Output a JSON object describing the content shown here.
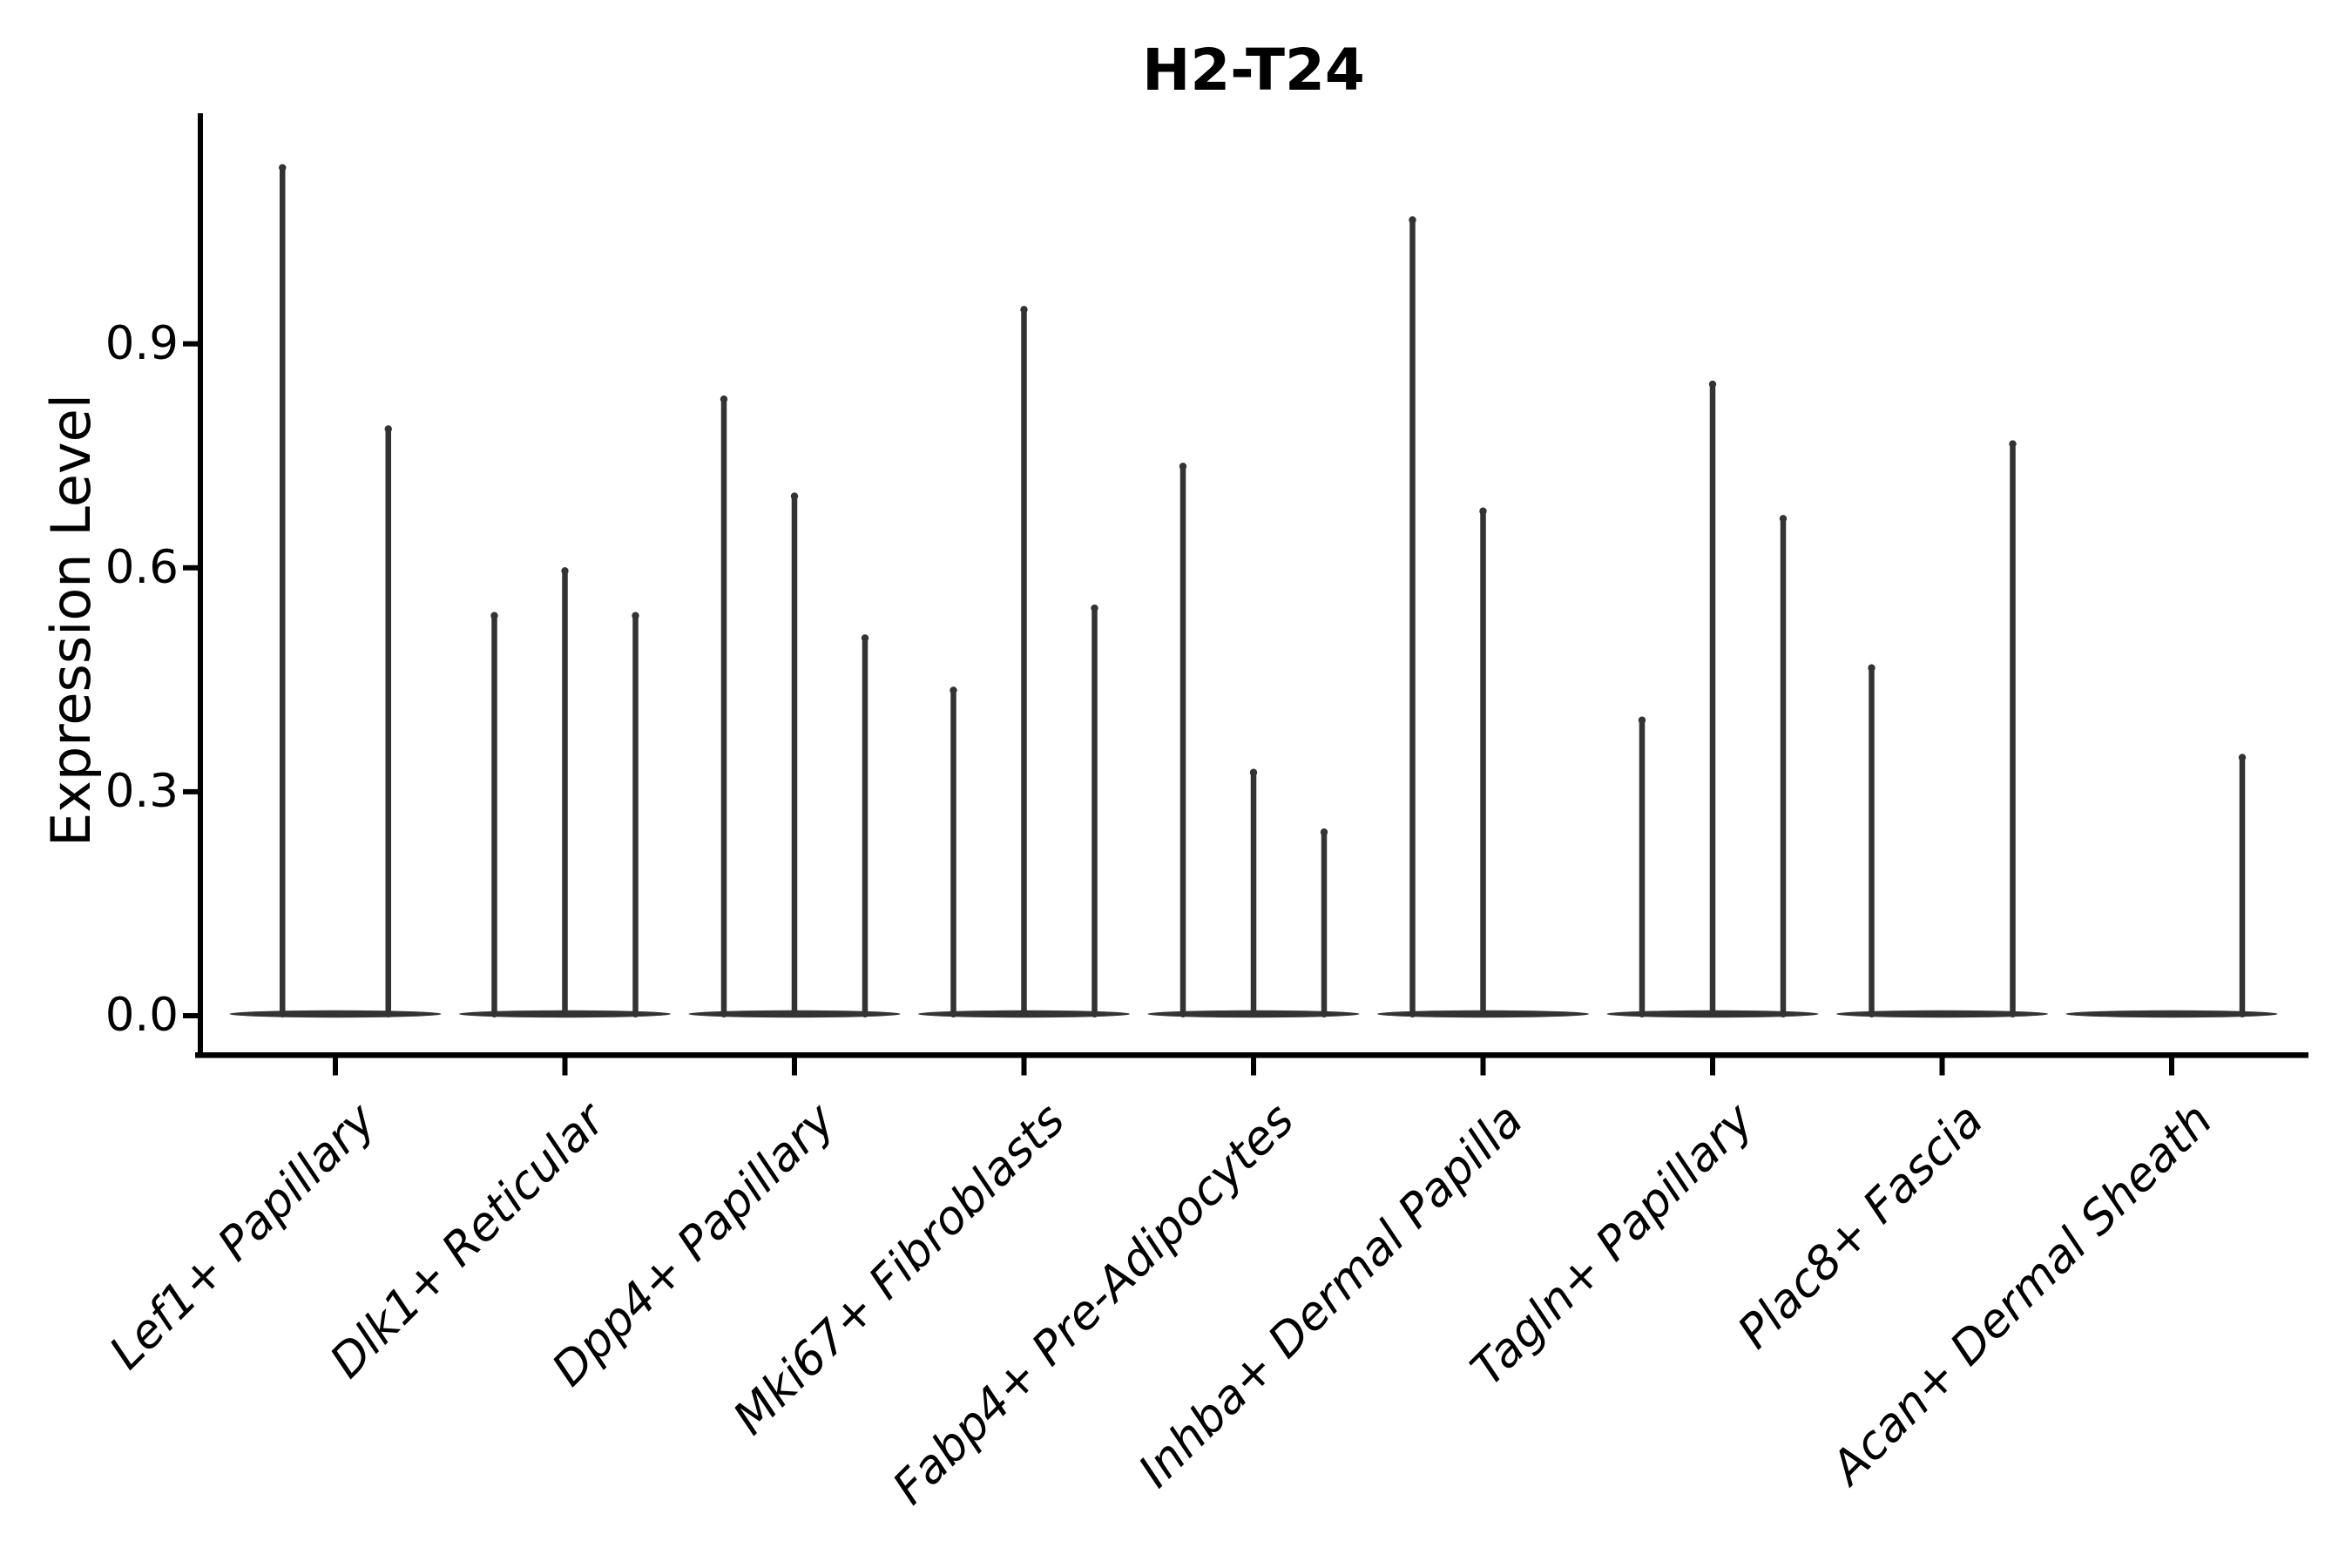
{
  "chart_data": {
    "type": "violin",
    "title": "H2-T24",
    "ylabel": "Expression Level",
    "xlabel": "",
    "yticks": [
      "0.0",
      "0.3",
      "0.6",
      "0.9"
    ],
    "ytick_values": [
      0.0,
      0.3,
      0.6,
      0.9
    ],
    "ylim": [
      -0.05,
      1.21
    ],
    "grid": false,
    "legend": "none",
    "categories": [
      "Lef1+ Papillary",
      "Dlk1+ Reticular",
      "Dpp4+ Papillary",
      "Mki67+ Fibroblasts",
      "Fabp4+ Pre-Adipocytes",
      "Inhba+ Dermal Papilla",
      "Tagln+ Papillary",
      "Plac8+ Fascia",
      "Acan+ Dermal Sheath"
    ],
    "groups": [
      {
        "category": "Lef1+ Papillary",
        "violin_peaks": [
          1.14,
          0.79
        ]
      },
      {
        "category": "Dlk1+ Reticular",
        "violin_peaks": [
          0.54,
          0.6,
          0.54
        ]
      },
      {
        "category": "Dpp4+ Papillary",
        "violin_peaks": [
          0.83,
          0.7,
          0.51
        ]
      },
      {
        "category": "Mki67+ Fibroblasts",
        "violin_peaks": [
          0.44,
          0.95,
          0.55
        ]
      },
      {
        "category": "Fabp4+ Pre-Adipocytes",
        "violin_peaks": [
          0.74,
          0.33,
          0.25
        ]
      },
      {
        "category": "Inhba+ Dermal Papilla",
        "violin_peaks": [
          1.07,
          0.68,
          0
        ]
      },
      {
        "category": "Tagln+ Papillary",
        "violin_peaks": [
          0.4,
          0.85,
          0.67
        ]
      },
      {
        "category": "Plac8+ Fascia",
        "violin_peaks": [
          0.47,
          0,
          0.77
        ]
      },
      {
        "category": "Acan+ Dermal Sheath",
        "violin_peaks": [
          0,
          0,
          0.35
        ]
      }
    ],
    "annotation": "violins are near-zero density spikes; peak value = max expression reached by each thin violin, 0 = fully flat violin at baseline",
    "colors": {
      "violin": "#333333",
      "axis": "#000000",
      "text": "#000000",
      "background": "#ffffff"
    }
  }
}
